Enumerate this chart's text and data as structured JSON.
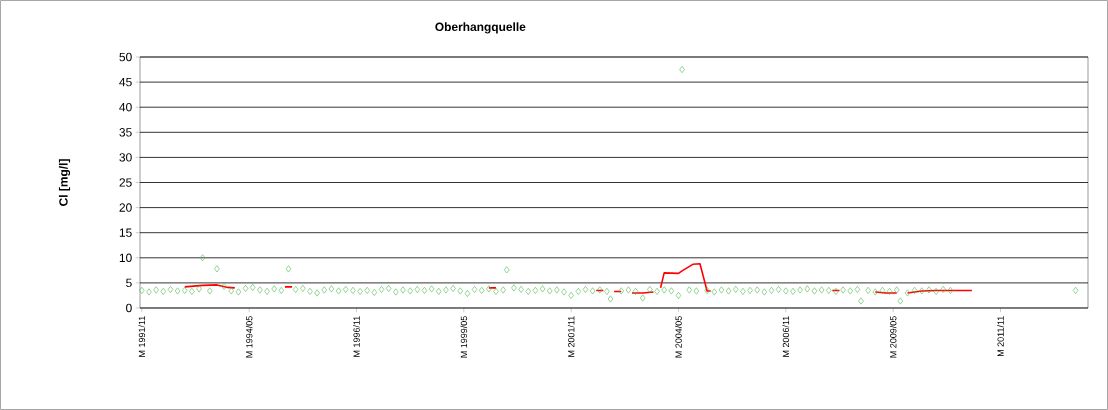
{
  "chart_data": {
    "type": "scatter",
    "title": "Oberhangquelle",
    "ylabel": "Cl [mg/l]",
    "xlim": [
      "1991-10-16",
      "2013-11-15"
    ],
    "ylim": [
      0,
      50
    ],
    "yticks": [
      0,
      5,
      10,
      15,
      20,
      25,
      30,
      35,
      40,
      45,
      50
    ],
    "xticks": [
      {
        "value": "1991-11",
        "label": "M 1991/11"
      },
      {
        "value": "1994-05",
        "label": "M 1994/05"
      },
      {
        "value": "1996-11",
        "label": "M 1996/11"
      },
      {
        "value": "1999-05",
        "label": "M 1999/05"
      },
      {
        "value": "2001-11",
        "label": "M 2001/11"
      },
      {
        "value": "2004-05",
        "label": "M 2004/05"
      },
      {
        "value": "2006-11",
        "label": "M 2006/11"
      },
      {
        "value": "2009-05",
        "label": "M 2009/05"
      },
      {
        "value": "2011-11",
        "label": "M 2011/11"
      }
    ],
    "grid": "y",
    "series": [
      {
        "marker": "diamond",
        "color": "#4cbb4c",
        "x": [
          "1991-11",
          "1992-01",
          "1992-03",
          "1992-05",
          "1992-07",
          "1992-09",
          "1992-11",
          "1993-01",
          "1993-03",
          "1993-04",
          "1993-06",
          "1993-08",
          "1993-10",
          "1993-12",
          "1994-02",
          "1994-04",
          "1994-06",
          "1994-08",
          "1994-10",
          "1994-12",
          "1995-02",
          "1995-04",
          "1995-06",
          "1995-08",
          "1995-10",
          "1995-12",
          "1996-02",
          "1996-04",
          "1996-06",
          "1996-08",
          "1996-10",
          "1996-12",
          "1997-02",
          "1997-04",
          "1997-06",
          "1997-08",
          "1997-10",
          "1997-12",
          "1998-02",
          "1998-04",
          "1998-06",
          "1998-08",
          "1998-10",
          "1998-12",
          "1999-02",
          "1999-04",
          "1999-06",
          "1999-08",
          "1999-10",
          "1999-12",
          "2000-02",
          "2000-04",
          "2000-05",
          "2000-07",
          "2000-09",
          "2000-11",
          "2001-01",
          "2001-03",
          "2001-05",
          "2001-07",
          "2001-09",
          "2001-11",
          "2002-01",
          "2002-03",
          "2002-05",
          "2002-07",
          "2002-09",
          "2002-10",
          "2003-01",
          "2003-03",
          "2003-05",
          "2003-07",
          "2003-09",
          "2003-11",
          "2004-01",
          "2004-03",
          "2004-05",
          "2004-06",
          "2004-08",
          "2004-10",
          "2005-01",
          "2005-03",
          "2005-05",
          "2005-07",
          "2005-09",
          "2005-11",
          "2006-01",
          "2006-03",
          "2006-05",
          "2006-07",
          "2006-09",
          "2006-11",
          "2007-01",
          "2007-03",
          "2007-05",
          "2007-07",
          "2007-09",
          "2007-11",
          "2008-01",
          "2008-03",
          "2008-05",
          "2008-07",
          "2008-08",
          "2008-10",
          "2008-12",
          "2009-02",
          "2009-04",
          "2009-06",
          "2009-07",
          "2009-09",
          "2009-11",
          "2010-01",
          "2010-03",
          "2010-05",
          "2010-07",
          "2010-09",
          "2013-08"
        ],
        "values": [
          3.5,
          3.2,
          3.6,
          3.3,
          3.7,
          3.4,
          3.5,
          3.3,
          3.8,
          10.0,
          3.4,
          7.8,
          4.3,
          3.4,
          3.2,
          3.9,
          4.1,
          3.6,
          3.3,
          3.8,
          3.5,
          7.8,
          3.7,
          3.9,
          3.3,
          3.0,
          3.6,
          3.8,
          3.4,
          3.7,
          3.5,
          3.3,
          3.5,
          3.1,
          3.7,
          3.9,
          3.2,
          3.6,
          3.4,
          3.7,
          3.5,
          3.8,
          3.3,
          3.6,
          3.9,
          3.4,
          2.9,
          3.7,
          3.5,
          3.8,
          3.3,
          3.6,
          7.6,
          4.0,
          3.7,
          3.3,
          3.5,
          3.8,
          3.4,
          3.6,
          3.2,
          2.5,
          3.3,
          3.7,
          3.4,
          3.6,
          3.3,
          1.8,
          3.4,
          3.6,
          3.3,
          2.0,
          3.7,
          3.3,
          3.6,
          3.4,
          2.5,
          47.5,
          3.6,
          3.4,
          3.5,
          3.2,
          3.6,
          3.4,
          3.7,
          3.3,
          3.5,
          3.6,
          3.2,
          3.5,
          3.7,
          3.4,
          3.3,
          3.6,
          3.8,
          3.4,
          3.6,
          3.5,
          3.3,
          3.6,
          3.4,
          3.7,
          1.4,
          3.5,
          3.2,
          3.5,
          3.3,
          3.6,
          1.4,
          3.0,
          3.5,
          3.4,
          3.6,
          3.3,
          3.7,
          3.5,
          3.5
        ]
      },
      {
        "type": "line",
        "color": "#ff0000",
        "line_style": "solid",
        "x": [
          "1992-11",
          "1993-04",
          "1993-08",
          "1993-11",
          "1994-01",
          "1994-02",
          "1995-03",
          "1995-05",
          "1995-06",
          "1999-12",
          "2000-02",
          "2000-03",
          "2002-06",
          "2002-08",
          "2002-09",
          "2002-11",
          "2003-01",
          "2003-02",
          "2003-04",
          "2003-07",
          "2003-10",
          "2003-11",
          "2003-12",
          "2004-01",
          "2004-05",
          "2004-06",
          "2004-09",
          "2004-11",
          "2005-01",
          "2005-02",
          "2005-03",
          "2007-12",
          "2008-02",
          "2008-03",
          "2008-12",
          "2009-03",
          "2009-06",
          "2009-07",
          "2009-09",
          "2010-01",
          "2010-05",
          "2011-03"
        ],
        "values": [
          4.2,
          4.5,
          4.6,
          4.1,
          4.0,
          null,
          4.2,
          4.2,
          null,
          4.0,
          4.0,
          null,
          3.5,
          3.5,
          null,
          3.3,
          3.3,
          null,
          3.0,
          3.0,
          3.2,
          null,
          4.0,
          7.0,
          6.9,
          7.4,
          8.7,
          8.8,
          3.4,
          3.4,
          null,
          3.5,
          3.5,
          null,
          3.2,
          3.0,
          3.0,
          null,
          3.0,
          3.4,
          3.5,
          3.5
        ]
      }
    ]
  }
}
